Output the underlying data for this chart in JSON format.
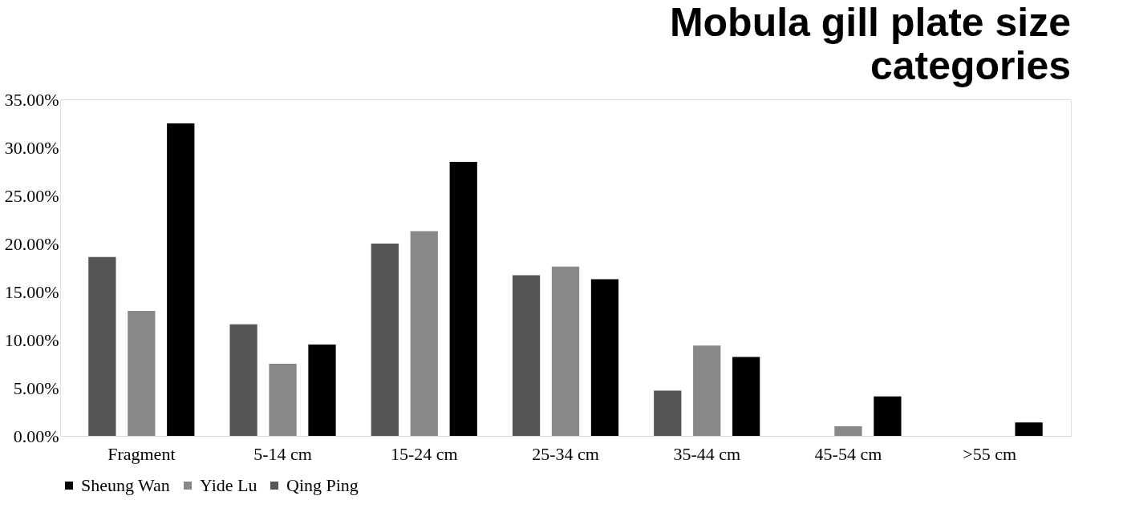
{
  "chart_data": {
    "type": "bar",
    "title": "Mobula gill plate size categories",
    "categories": [
      "Fragment",
      "5-14 cm",
      "15-24 cm",
      "25-34 cm",
      "35-44 cm",
      "45-54 cm",
      ">55 cm"
    ],
    "series": [
      {
        "name": "Qing Ping",
        "color": "#555555",
        "values": [
          18.6,
          11.6,
          20.0,
          16.7,
          4.7,
          0,
          0
        ]
      },
      {
        "name": "Yide Lu",
        "color": "#888888",
        "values": [
          13.0,
          7.5,
          21.3,
          17.6,
          9.4,
          1.0,
          0
        ]
      },
      {
        "name": "Sheung Wan",
        "color": "#000000",
        "values": [
          32.5,
          9.5,
          28.5,
          16.3,
          8.2,
          4.1,
          1.4
        ]
      }
    ],
    "ylim": [
      0,
      35
    ],
    "yticks": [
      {
        "value": 0,
        "label": "0.00%"
      },
      {
        "value": 5,
        "label": "5.00%"
      },
      {
        "value": 10,
        "label": "10.00%"
      },
      {
        "value": 15,
        "label": "15.00%"
      },
      {
        "value": 20,
        "label": "20.00%"
      },
      {
        "value": 25,
        "label": "25.00%"
      },
      {
        "value": 30,
        "label": "30.00%"
      },
      {
        "value": 35,
        "label": "35.00%"
      }
    ],
    "grid": false,
    "legend": "bottom"
  }
}
